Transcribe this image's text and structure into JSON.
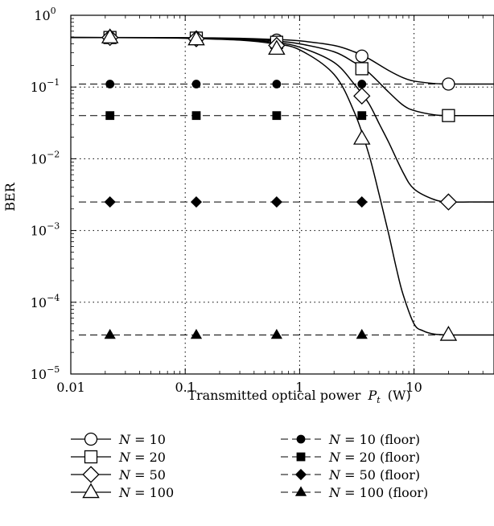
{
  "chart_data": {
    "type": "line",
    "title": "",
    "xlabel": "Transmitted optical power",
    "xlabel_symbol": "P",
    "xlabel_sub": "t",
    "xlabel_unit": "(W)",
    "ylabel": "BER",
    "x_scale": "log",
    "y_scale": "log",
    "xlim": [
      0.01,
      50
    ],
    "ylim": [
      1e-05,
      1
    ],
    "grid": "dotted",
    "legend_position": "bottom",
    "x_ticks": [
      {
        "value": 0.01,
        "label": "0.01"
      },
      {
        "value": 0.1,
        "label": "0.1"
      },
      {
        "value": 1,
        "label": "1"
      },
      {
        "value": 10,
        "label": "10"
      }
    ],
    "y_ticks": [
      {
        "value": 1,
        "base": "10",
        "exp": "0"
      },
      {
        "value": 0.1,
        "base": "10",
        "exp": "−1"
      },
      {
        "value": 0.01,
        "base": "10",
        "exp": "−2"
      },
      {
        "value": 0.001,
        "base": "10",
        "exp": "−3"
      },
      {
        "value": 0.0001,
        "base": "10",
        "exp": "−4"
      },
      {
        "value": 1e-05,
        "base": "10",
        "exp": "−5"
      }
    ],
    "series": [
      {
        "name": "N = 10",
        "style": "solid",
        "marker": "circle",
        "x": [
          0.022,
          0.125,
          0.63,
          3.5,
          20
        ],
        "y": [
          0.49,
          0.485,
          0.45,
          0.27,
          0.11
        ],
        "curve_x": [
          0.01,
          0.05,
          0.1,
          0.3,
          0.6,
          1,
          2,
          3,
          4,
          6,
          8,
          10,
          15,
          20,
          30,
          50
        ],
        "curve_y": [
          0.49,
          0.489,
          0.487,
          0.478,
          0.46,
          0.44,
          0.38,
          0.31,
          0.25,
          0.17,
          0.135,
          0.121,
          0.112,
          0.11,
          0.11,
          0.11
        ]
      },
      {
        "name": "N = 20",
        "style": "solid",
        "marker": "square",
        "x": [
          0.022,
          0.125,
          0.63,
          3.5,
          20
        ],
        "y": [
          0.49,
          0.48,
          0.42,
          0.18,
          0.04
        ],
        "curve_x": [
          0.01,
          0.05,
          0.1,
          0.3,
          0.6,
          1,
          2,
          3,
          4,
          6,
          8,
          10,
          15,
          20,
          30,
          50
        ],
        "curve_y": [
          0.49,
          0.488,
          0.485,
          0.47,
          0.44,
          0.4,
          0.31,
          0.22,
          0.16,
          0.085,
          0.056,
          0.047,
          0.041,
          0.04,
          0.04,
          0.04
        ]
      },
      {
        "name": "N = 50",
        "style": "solid",
        "marker": "diamond",
        "x": [
          0.022,
          0.125,
          0.63,
          3.5,
          20
        ],
        "y": [
          0.49,
          0.47,
          0.38,
          0.075,
          0.0025
        ],
        "curve_x": [
          0.01,
          0.05,
          0.1,
          0.3,
          0.6,
          1,
          2,
          3,
          4,
          5,
          6,
          8,
          10,
          15,
          20,
          30,
          50
        ],
        "curve_y": [
          0.49,
          0.487,
          0.482,
          0.46,
          0.42,
          0.36,
          0.22,
          0.11,
          0.06,
          0.03,
          0.017,
          0.0065,
          0.0038,
          0.0027,
          0.0025,
          0.0025,
          0.0025
        ]
      },
      {
        "name": "N = 100",
        "style": "solid",
        "marker": "triangle",
        "x": [
          0.022,
          0.125,
          0.63,
          3.5,
          20
        ],
        "y": [
          0.49,
          0.46,
          0.34,
          0.019,
          3.5e-05
        ],
        "curve_x": [
          0.01,
          0.05,
          0.1,
          0.3,
          0.6,
          1,
          2,
          3,
          4,
          5,
          6,
          7,
          8,
          10,
          12,
          15,
          20,
          30,
          50
        ],
        "curve_y": [
          0.49,
          0.486,
          0.478,
          0.45,
          0.4,
          0.33,
          0.15,
          0.045,
          0.012,
          0.003,
          0.0009,
          0.0003,
          0.00013,
          5e-05,
          4e-05,
          3.6e-05,
          3.5e-05,
          3.5e-05,
          3.5e-05
        ]
      },
      {
        "name": "N = 10 (floor)",
        "style": "dashed",
        "marker": "filled-circle",
        "x": [
          0.022,
          0.125,
          0.63,
          3.5,
          20
        ],
        "y": [
          0.11,
          0.11,
          0.11,
          0.11,
          0.11
        ]
      },
      {
        "name": "N = 20 (floor)",
        "style": "dashed",
        "marker": "filled-square",
        "x": [
          0.022,
          0.125,
          0.63,
          3.5,
          20
        ],
        "y": [
          0.04,
          0.04,
          0.04,
          0.04,
          0.04
        ]
      },
      {
        "name": "N = 50 (floor)",
        "style": "dashed",
        "marker": "filled-diamond",
        "x": [
          0.022,
          0.125,
          0.63,
          3.5,
          20
        ],
        "y": [
          0.0025,
          0.0025,
          0.0025,
          0.0025,
          0.0025
        ]
      },
      {
        "name": "N = 100 (floor)",
        "style": "dashed",
        "marker": "filled-triangle",
        "x": [
          0.022,
          0.125,
          0.63,
          3.5,
          20
        ],
        "y": [
          3.5e-05,
          3.5e-05,
          3.5e-05,
          3.5e-05,
          3.5e-05
        ]
      }
    ]
  }
}
